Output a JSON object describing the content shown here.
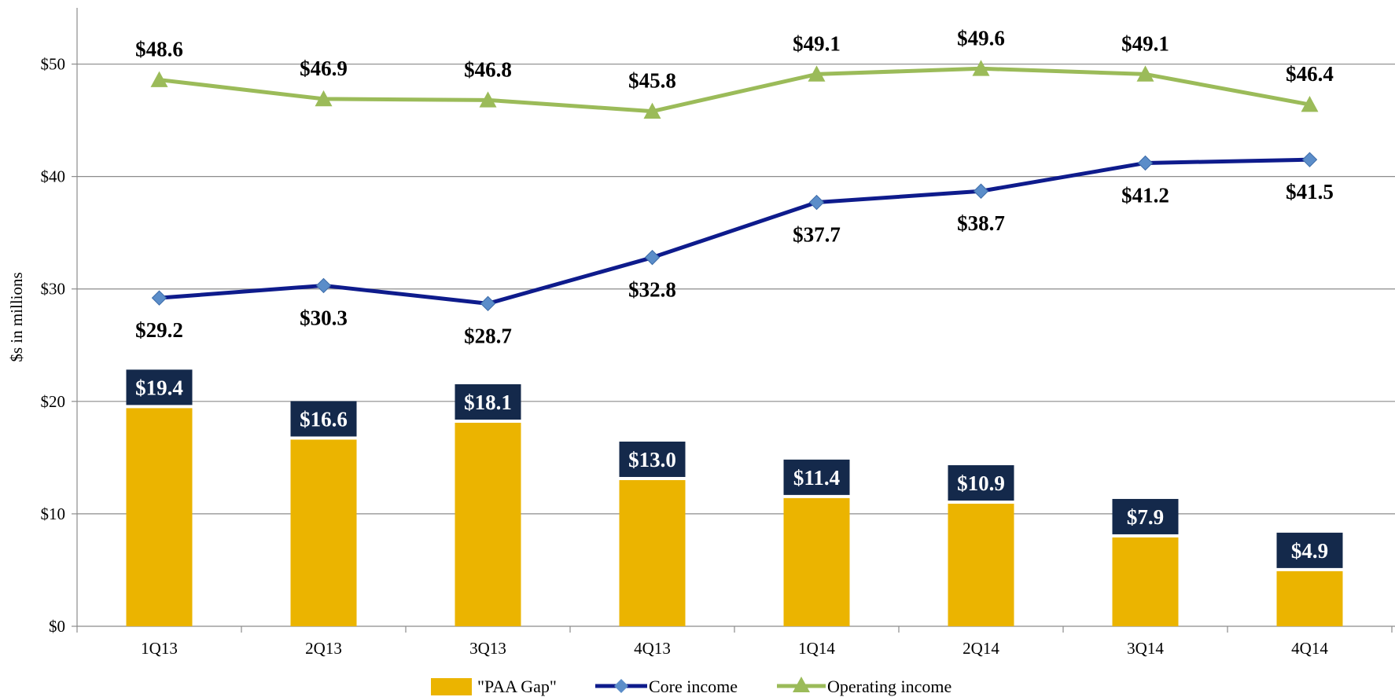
{
  "chart_data": {
    "type": "bar",
    "categories": [
      "1Q13",
      "2Q13",
      "3Q13",
      "4Q13",
      "1Q14",
      "2Q14",
      "3Q14",
      "4Q14"
    ],
    "ylabel": "$s in millions",
    "ylim": [
      0,
      55
    ],
    "yticks": [
      0,
      10,
      20,
      30,
      40,
      50
    ],
    "ytick_labels": [
      "$0",
      "$10",
      "$20",
      "$30",
      "$40",
      "$50"
    ],
    "grid": true,
    "legend_position": "bottom",
    "series": [
      {
        "name": "\"PAA Gap\"",
        "kind": "bar",
        "color": "#EBB400",
        "label_box_color": "#14294B",
        "values": [
          19.4,
          16.6,
          18.1,
          13.0,
          11.4,
          10.9,
          7.9,
          4.9
        ],
        "labels": [
          "$19.4",
          "$16.6",
          "$18.1",
          "$13.0",
          "$11.4",
          "$10.9",
          "$7.9",
          "$4.9"
        ]
      },
      {
        "name": "Core income",
        "kind": "line",
        "color": "#0E1B8C",
        "marker": "diamond",
        "marker_color": "#5B8DC9",
        "label_position": "below",
        "values": [
          29.2,
          30.3,
          28.7,
          32.8,
          37.7,
          38.7,
          41.2,
          41.5
        ],
        "labels": [
          "$29.2",
          "$30.3",
          "$28.7",
          "$32.8",
          "$37.7",
          "$38.7",
          "$41.2",
          "$41.5"
        ]
      },
      {
        "name": "Operating income",
        "kind": "line",
        "color": "#9BBB59",
        "marker": "triangle",
        "marker_color": "#9BBB59",
        "label_position": "above",
        "values": [
          48.6,
          46.9,
          46.8,
          45.8,
          49.1,
          49.6,
          49.1,
          46.4
        ],
        "labels": [
          "$48.6",
          "$46.9",
          "$46.8",
          "$45.8",
          "$49.1",
          "$49.6",
          "$49.1",
          "$46.4"
        ]
      }
    ]
  }
}
